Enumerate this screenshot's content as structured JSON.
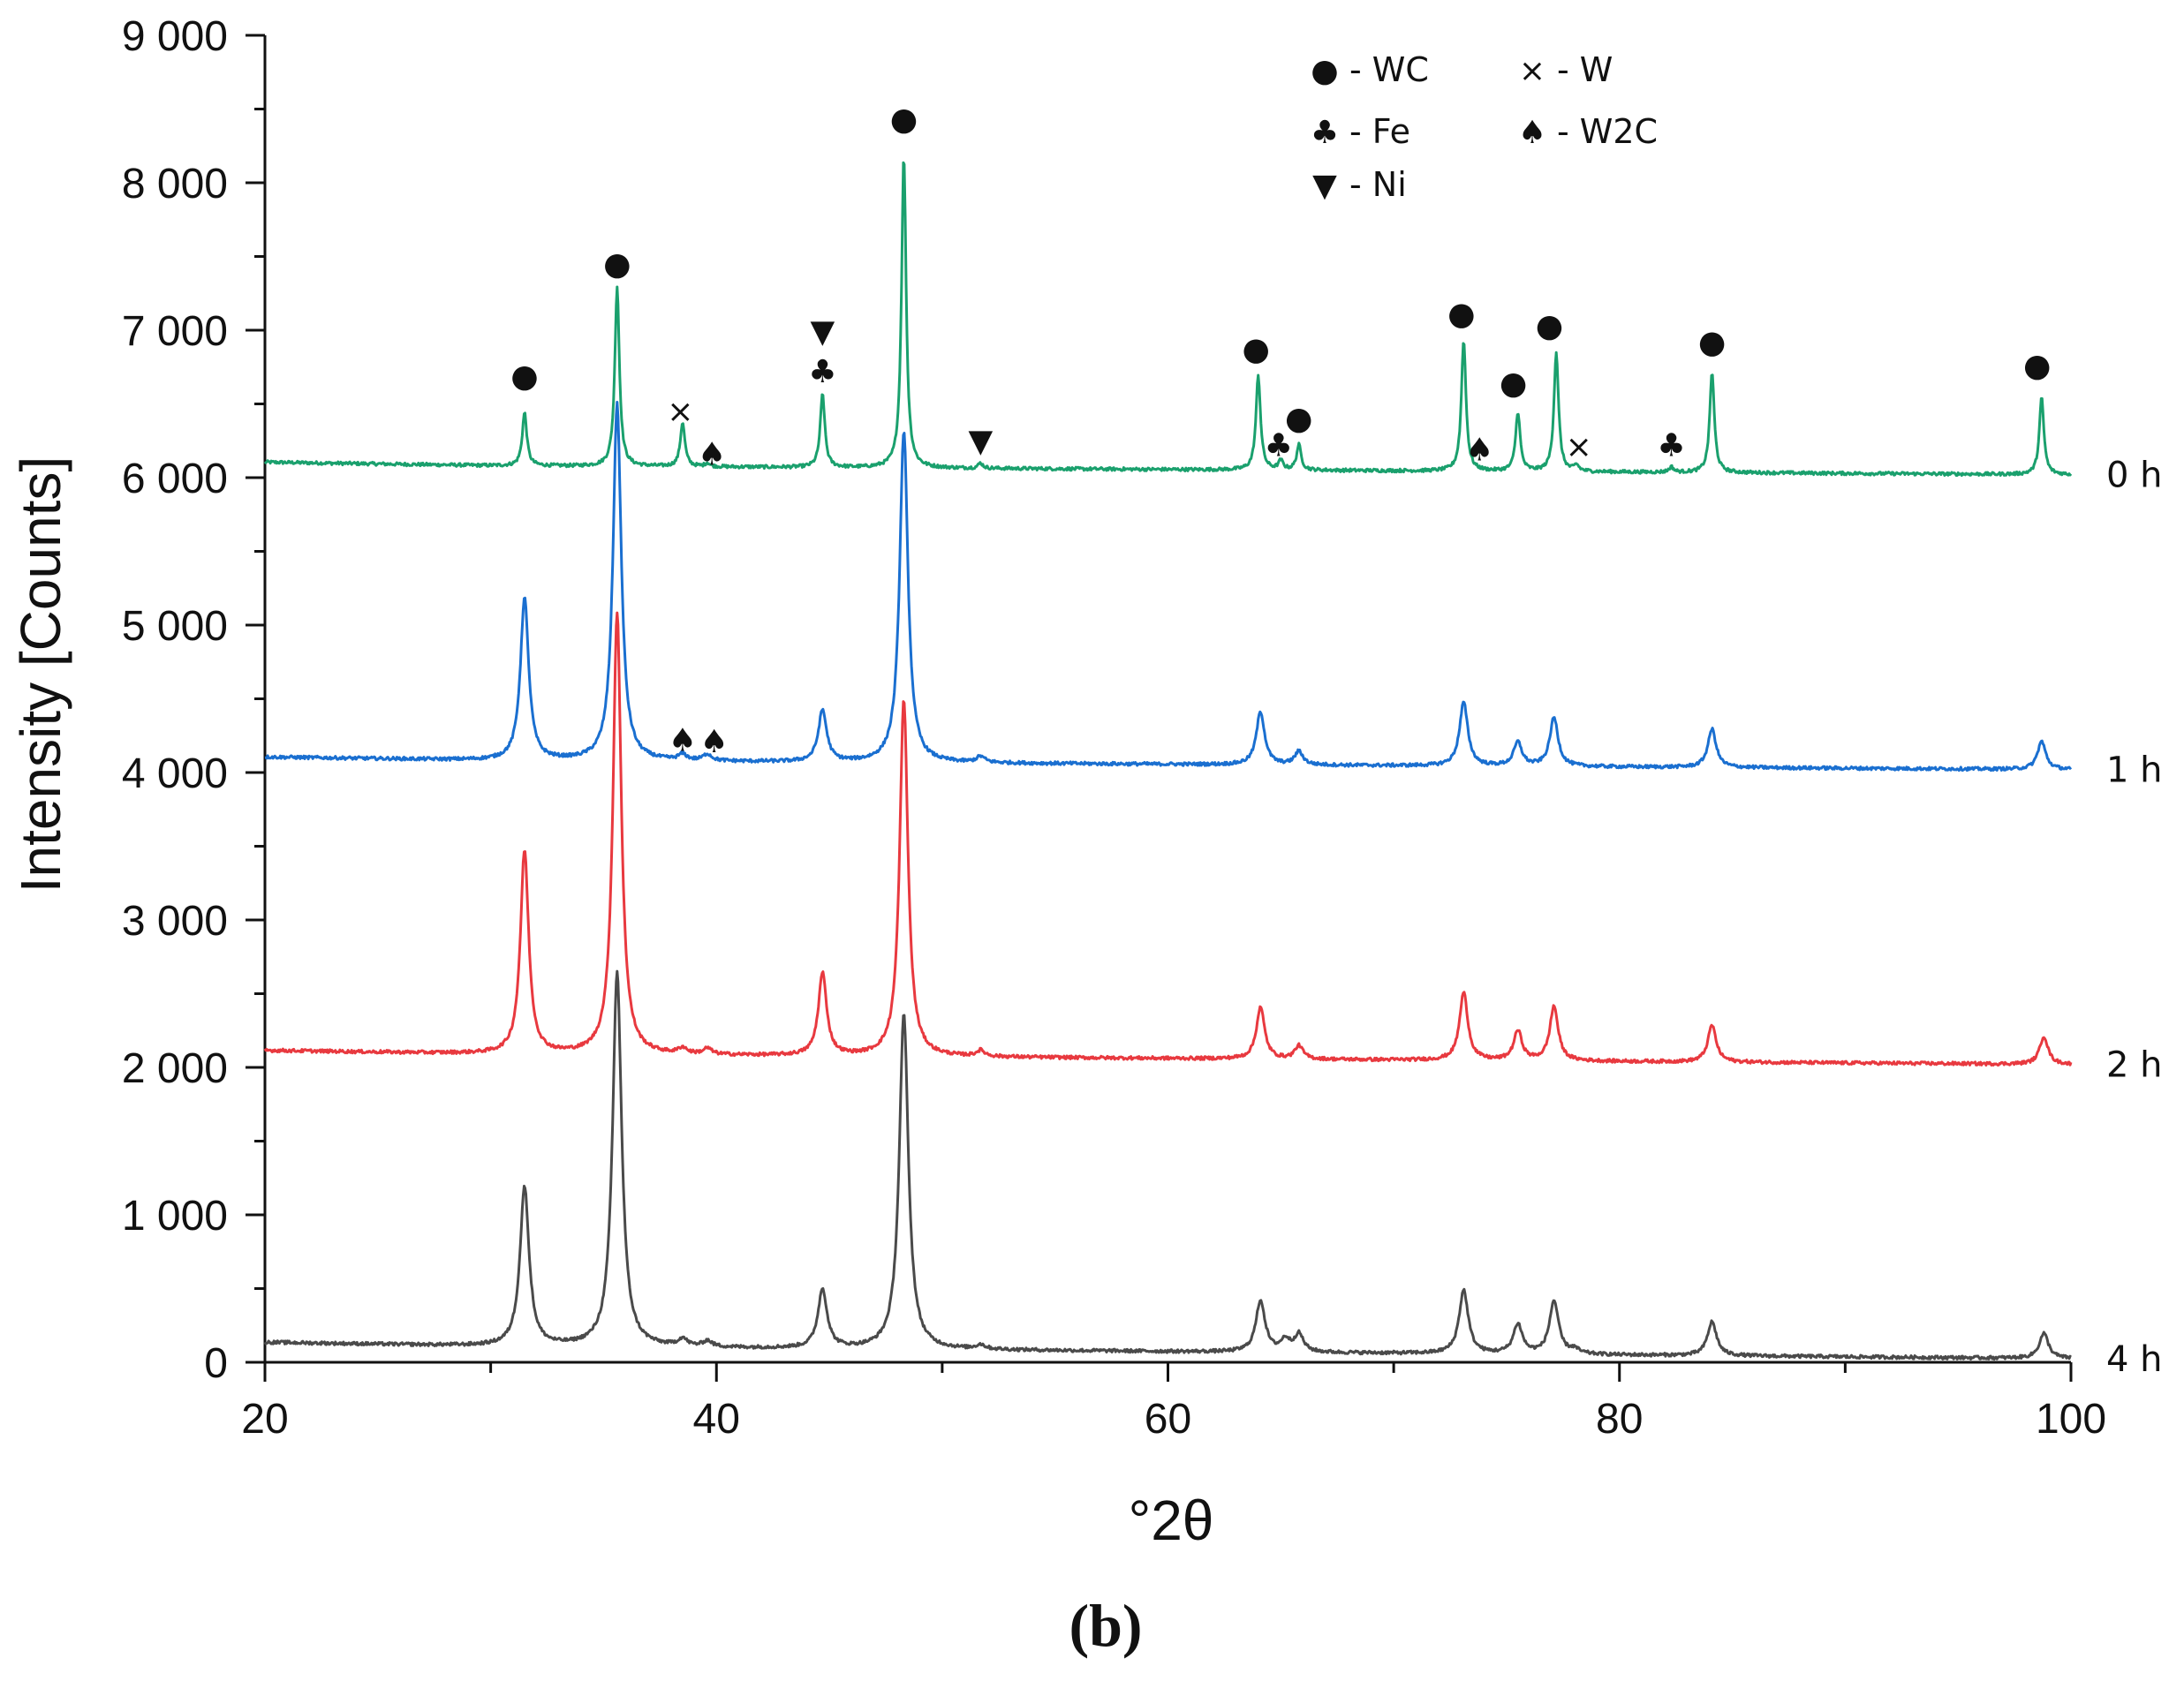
{
  "chart_data": {
    "type": "line",
    "title": "",
    "caption": "(b)",
    "xlabel": "°2θ",
    "ylabel": "Intensity [Counts]",
    "xlim": [
      20,
      100
    ],
    "ylim": [
      0,
      9000
    ],
    "x_ticks": [
      {
        "value": 20,
        "label": "20"
      },
      {
        "value": 40,
        "label": "40"
      },
      {
        "value": 60,
        "label": "60"
      },
      {
        "value": 80,
        "label": "80"
      },
      {
        "value": 100,
        "label": "100"
      }
    ],
    "y_ticks": [
      {
        "value": 0,
        "label": "0"
      },
      {
        "value": 1000,
        "label": "1 000"
      },
      {
        "value": 2000,
        "label": "2 000"
      },
      {
        "value": 3000,
        "label": "3 000"
      },
      {
        "value": 4000,
        "label": "4 000"
      },
      {
        "value": 5000,
        "label": "5 000"
      },
      {
        "value": 6000,
        "label": "6 000"
      },
      {
        "value": 7000,
        "label": "7 000"
      },
      {
        "value": 8000,
        "label": "8 000"
      },
      {
        "value": 9000,
        "label": "9 000"
      }
    ],
    "grid": false,
    "series": [
      {
        "name": "0 h",
        "color": "#1aa06d",
        "start": 6090,
        "end": 6020,
        "width_scale": 0.55,
        "peaks": [
          [
            31.5,
            360
          ],
          [
            35.6,
            1220
          ],
          [
            38.5,
            300
          ],
          [
            39.6,
            25
          ],
          [
            44.7,
            500
          ],
          [
            48.3,
            2120
          ],
          [
            51.7,
            35
          ],
          [
            64.0,
            640
          ],
          [
            65.0,
            60
          ],
          [
            65.8,
            170
          ],
          [
            73.1,
            890
          ],
          [
            75.5,
            400
          ],
          [
            77.2,
            810
          ],
          [
            78.1,
            40
          ],
          [
            82.3,
            35
          ],
          [
            84.1,
            680
          ],
          [
            98.7,
            520
          ]
        ]
      },
      {
        "name": "1 h",
        "color": "#1a6fd0",
        "start": 4090,
        "end": 4020,
        "width_scale": 1.0,
        "peaks": [
          [
            31.5,
            1100
          ],
          [
            35.6,
            2420
          ],
          [
            38.5,
            40
          ],
          [
            39.6,
            45
          ],
          [
            44.7,
            350
          ],
          [
            48.3,
            2250
          ],
          [
            51.7,
            40
          ],
          [
            64.1,
            360
          ],
          [
            65.8,
            90
          ],
          [
            73.1,
            430
          ],
          [
            75.5,
            160
          ],
          [
            77.1,
            330
          ],
          [
            84.1,
            260
          ],
          [
            98.7,
            190
          ]
        ]
      },
      {
        "name": "2 h",
        "color": "#e8393f",
        "start": 2100,
        "end": 2020,
        "width_scale": 1.0,
        "peaks": [
          [
            31.5,
            1380
          ],
          [
            35.6,
            3000
          ],
          [
            38.5,
            40
          ],
          [
            39.6,
            40
          ],
          [
            44.7,
            560
          ],
          [
            48.3,
            2420
          ],
          [
            51.7,
            40
          ],
          [
            64.1,
            350
          ],
          [
            65.8,
            90
          ],
          [
            73.1,
            460
          ],
          [
            75.5,
            200
          ],
          [
            77.1,
            370
          ],
          [
            84.1,
            250
          ],
          [
            98.8,
            190
          ]
        ]
      },
      {
        "name": "4 h",
        "color": "#4a4a4a",
        "start": 120,
        "end": 25,
        "width_scale": 1.1,
        "peaks": [
          [
            31.5,
            1080
          ],
          [
            35.6,
            2540
          ],
          [
            38.5,
            50
          ],
          [
            39.6,
            40
          ],
          [
            44.7,
            400
          ],
          [
            48.3,
            2270
          ],
          [
            51.7,
            30
          ],
          [
            64.1,
            350
          ],
          [
            65.2,
            80
          ],
          [
            65.8,
            120
          ],
          [
            73.1,
            430
          ],
          [
            75.5,
            200
          ],
          [
            77.1,
            360
          ],
          [
            78.0,
            30
          ],
          [
            84.1,
            230
          ],
          [
            98.8,
            170
          ]
        ]
      }
    ],
    "phase_legend": [
      {
        "symbol": "●",
        "label": "- WC"
      },
      {
        "symbol": "×",
        "label": "- W"
      },
      {
        "symbol": "♣",
        "label": "- Fe"
      },
      {
        "symbol": "♠",
        "label": "- W2C"
      },
      {
        "symbol": "▼",
        "label": "- Ni"
      }
    ],
    "phase_markers": [
      {
        "symbol": "●",
        "x": 31.5,
        "y": 6690
      },
      {
        "symbol": "●",
        "x": 35.6,
        "y": 7450
      },
      {
        "symbol": "×",
        "x": 38.4,
        "y": 6450
      },
      {
        "symbol": "♠",
        "x": 39.8,
        "y": 6160
      },
      {
        "symbol": "▼",
        "x": 44.7,
        "y": 6990
      },
      {
        "symbol": "♣",
        "x": 44.7,
        "y": 6720
      },
      {
        "symbol": "●",
        "x": 48.3,
        "y": 8430
      },
      {
        "symbol": "▼",
        "x": 51.7,
        "y": 6250
      },
      {
        "symbol": "●",
        "x": 63.9,
        "y": 6870
      },
      {
        "symbol": "♣",
        "x": 64.9,
        "y": 6220
      },
      {
        "symbol": "●",
        "x": 65.8,
        "y": 6400
      },
      {
        "symbol": "●",
        "x": 73.0,
        "y": 7110
      },
      {
        "symbol": "♠",
        "x": 73.8,
        "y": 6190
      },
      {
        "symbol": "●",
        "x": 75.3,
        "y": 6640
      },
      {
        "symbol": "●",
        "x": 76.9,
        "y": 7030
      },
      {
        "symbol": "×",
        "x": 78.2,
        "y": 6210
      },
      {
        "symbol": "♣",
        "x": 82.3,
        "y": 6220
      },
      {
        "symbol": "●",
        "x": 84.1,
        "y": 6920
      },
      {
        "symbol": "●",
        "x": 98.5,
        "y": 6760
      },
      {
        "symbol": "♠",
        "x": 38.5,
        "y": 4220
      },
      {
        "symbol": "♠",
        "x": 39.9,
        "y": 4210
      }
    ]
  }
}
